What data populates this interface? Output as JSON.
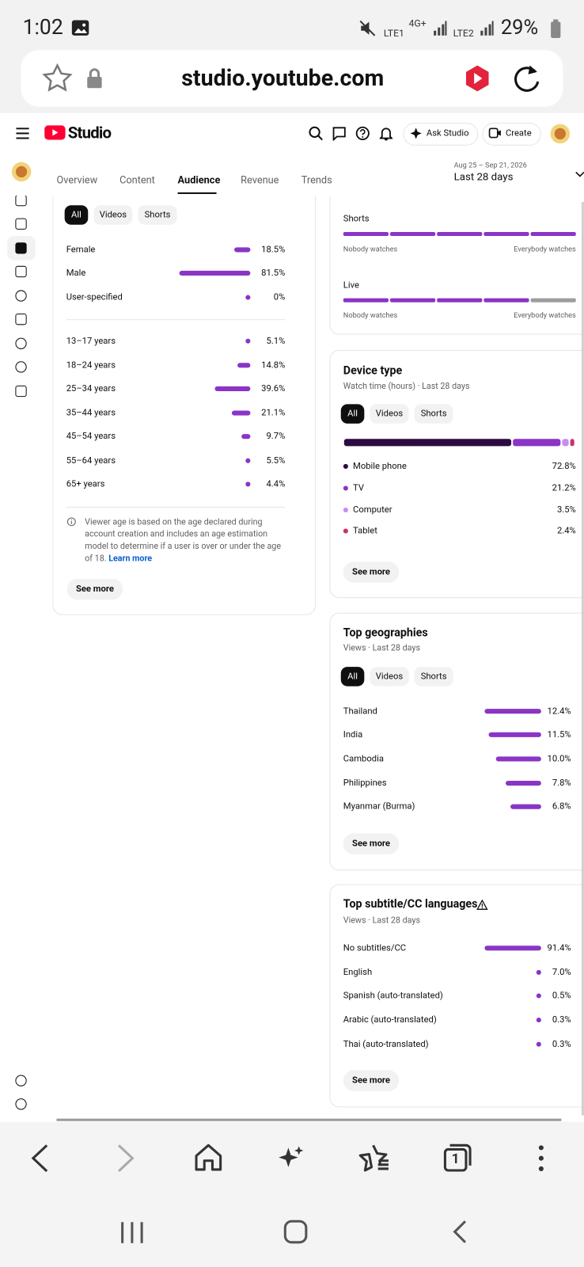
{
  "status_bar": {
    "time": "1:02",
    "net1": "LTE1",
    "net2": "4G+",
    "net3": "LTE2",
    "battery": "29%"
  },
  "browser": {
    "url": "studio.youtube.com",
    "tab_count": "1"
  },
  "header": {
    "brand": "Studio",
    "ask": "Ask Studio",
    "create": "Create"
  },
  "tabs": [
    "Overview",
    "Content",
    "Audience",
    "Revenue",
    "Trends"
  ],
  "date_range": {
    "range": "Aug 25 – Sep 21, 2026",
    "label": "Last 28 days"
  },
  "demographics": {
    "filters": [
      "All",
      "Videos",
      "Shorts"
    ],
    "gender": [
      {
        "label": "Female",
        "value": 18.5,
        "value_label": "18.5%"
      },
      {
        "label": "Male",
        "value": 81.5,
        "value_label": "81.5%"
      },
      {
        "label": "User-specified",
        "value": 0,
        "value_label": "0%"
      }
    ],
    "age": [
      {
        "label": "13–17 years",
        "value": 5.1,
        "value_label": "5.1%"
      },
      {
        "label": "18–24 years",
        "value": 14.8,
        "value_label": "14.8%"
      },
      {
        "label": "25–34 years",
        "value": 39.6,
        "value_label": "39.6%"
      },
      {
        "label": "35–44 years",
        "value": 21.1,
        "value_label": "21.1%"
      },
      {
        "label": "45–54 years",
        "value": 9.7,
        "value_label": "9.7%"
      },
      {
        "label": "55–64 years",
        "value": 5.5,
        "value_label": "5.5%"
      },
      {
        "label": "65+ years",
        "value": 4.4,
        "value_label": "4.4%"
      }
    ],
    "note": "Viewer age is based on the age declared during account creation and includes an age estimation model to determine if a user is over or under the age of 18.",
    "learn_more": "Learn more",
    "see_more": "See more"
  },
  "retention": [
    {
      "label": "Shorts",
      "min": "Nobody watches",
      "max": "Everybody watches"
    },
    {
      "label": "Live",
      "min": "Nobody watches",
      "max": "Everybody watches"
    }
  ],
  "device_type": {
    "title": "Device type",
    "subtitle": "Watch time (hours) · Last 28 days",
    "filters": [
      "All",
      "Videos",
      "Shorts"
    ],
    "items": [
      {
        "label": "Mobile phone",
        "value": 72.8,
        "value_label": "72.8%",
        "color": "#2b0b40"
      },
      {
        "label": "TV",
        "value": 21.2,
        "value_label": "21.2%",
        "color": "#8a35c6"
      },
      {
        "label": "Computer",
        "value": 3.5,
        "value_label": "3.5%",
        "color": "#c88cf0"
      },
      {
        "label": "Tablet",
        "value": 2.4,
        "value_label": "2.4%",
        "color": "#c8336f"
      }
    ],
    "see_more": "See more"
  },
  "geographies": {
    "title": "Top geographies",
    "subtitle": "Views · Last 28 days",
    "filters": [
      "All",
      "Videos",
      "Shorts"
    ],
    "rows": [
      {
        "label": "Thailand",
        "value": 12.4,
        "value_label": "12.4%"
      },
      {
        "label": "India",
        "value": 11.5,
        "value_label": "11.5%"
      },
      {
        "label": "Cambodia",
        "value": 10.0,
        "value_label": "10.0%"
      },
      {
        "label": "Philippines",
        "value": 7.8,
        "value_label": "7.8%"
      },
      {
        "label": "Myanmar (Burma)",
        "value": 6.8,
        "value_label": "6.8%"
      }
    ],
    "see_more": "See more"
  },
  "subtitles": {
    "title": "Top subtitle/CC languages",
    "subtitle": "Views · Last 28 days",
    "rows": [
      {
        "label": "No subtitles/CC",
        "value": 91.4,
        "value_label": "91.4%"
      },
      {
        "label": "English",
        "value": 7.0,
        "value_label": "7.0%"
      },
      {
        "label": "Spanish (auto-translated)",
        "value": 0.5,
        "value_label": "0.5%"
      },
      {
        "label": "Arabic (auto-translated)",
        "value": 0.3,
        "value_label": "0.3%"
      },
      {
        "label": "Thai (auto-translated)",
        "value": 0.3,
        "value_label": "0.3%"
      }
    ],
    "see_more": "See more"
  }
}
